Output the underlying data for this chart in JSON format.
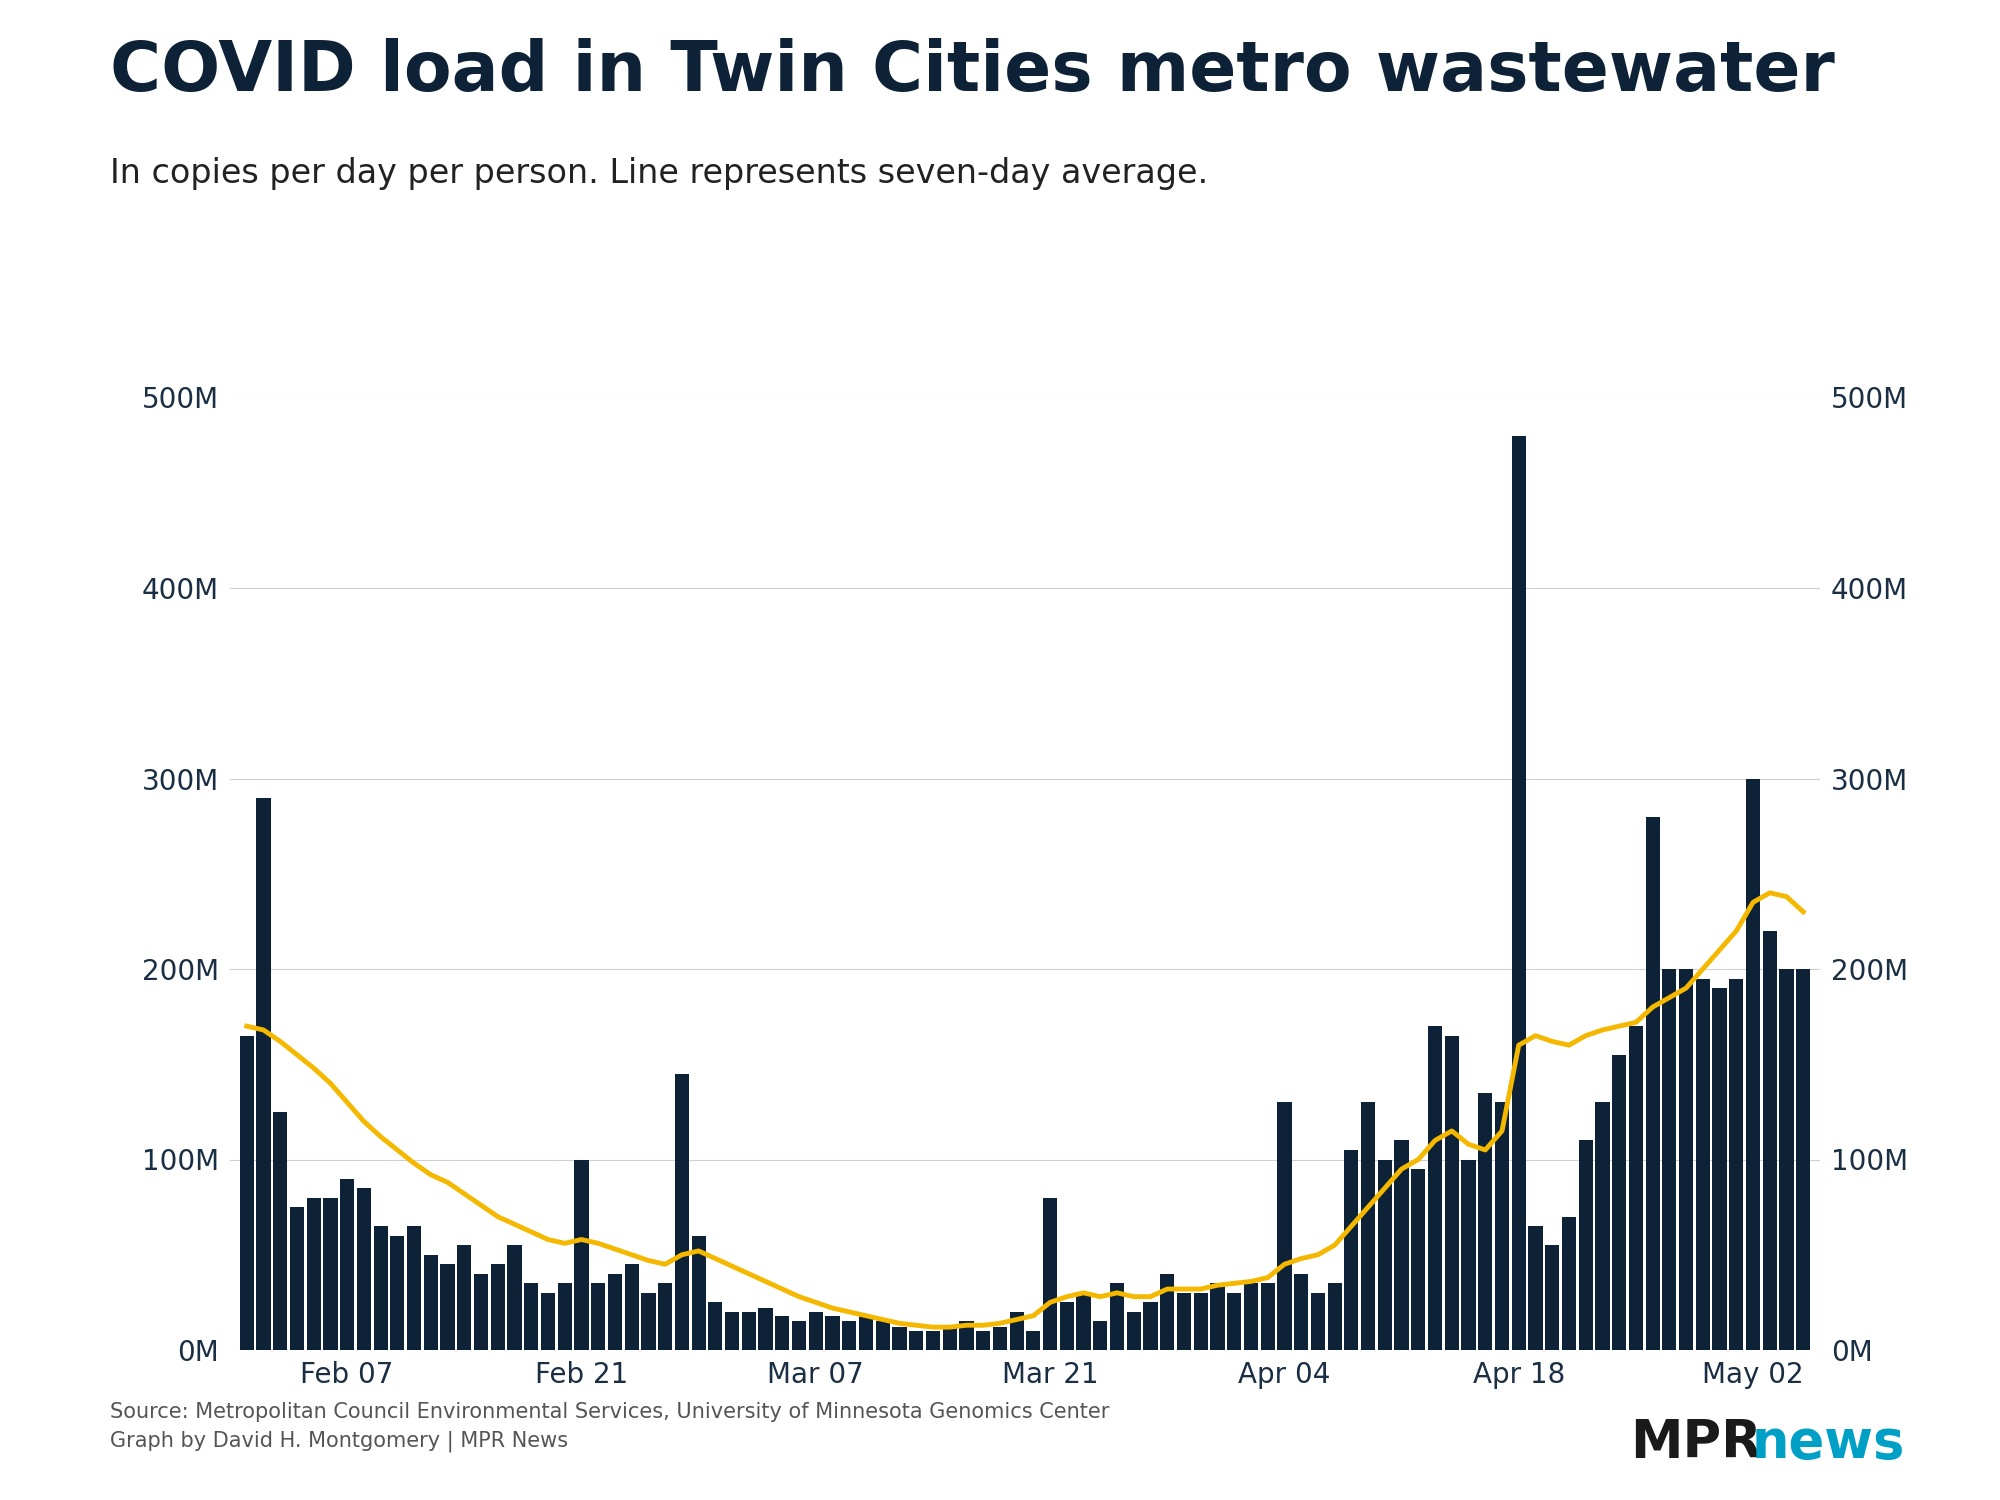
{
  "title": "COVID load in Twin Cities metro wastewater",
  "subtitle": "In copies per day per person. Line represents seven-day average.",
  "source_line1": "Source: Metropolitan Council Environmental Services, University of Minnesota Genomics Center",
  "source_line2": "Graph by David H. Montgomery | MPR News",
  "bar_color": "#0d2137",
  "line_color": "#f5b800",
  "background_color": "#ffffff",
  "ylim": [
    0,
    500000000
  ],
  "yticks": [
    0,
    100000000,
    200000000,
    300000000,
    400000000,
    500000000
  ],
  "title_color": "#0d2137",
  "axis_label_color": "#1a2e44",
  "tick_label_color": "#1a2e44",
  "bar_values": [
    165000000,
    290000000,
    125000000,
    75000000,
    80000000,
    80000000,
    90000000,
    85000000,
    65000000,
    60000000,
    65000000,
    50000000,
    45000000,
    55000000,
    40000000,
    45000000,
    55000000,
    35000000,
    30000000,
    35000000,
    100000000,
    35000000,
    40000000,
    45000000,
    30000000,
    35000000,
    145000000,
    60000000,
    25000000,
    20000000,
    20000000,
    22000000,
    18000000,
    15000000,
    20000000,
    18000000,
    15000000,
    18000000,
    15000000,
    12000000,
    10000000,
    10000000,
    12000000,
    15000000,
    10000000,
    12000000,
    20000000,
    10000000,
    80000000,
    25000000,
    30000000,
    15000000,
    35000000,
    20000000,
    25000000,
    40000000,
    30000000,
    30000000,
    35000000,
    30000000,
    35000000,
    35000000,
    130000000,
    40000000,
    30000000,
    35000000,
    105000000,
    130000000,
    100000000,
    110000000,
    95000000,
    170000000,
    165000000,
    100000000,
    135000000,
    130000000,
    480000000,
    65000000,
    55000000,
    70000000,
    110000000,
    130000000,
    155000000,
    170000000,
    280000000,
    200000000,
    200000000,
    195000000,
    190000000,
    195000000,
    300000000,
    220000000,
    200000000,
    200000000
  ],
  "avg_values": [
    170000000,
    168000000,
    162000000,
    155000000,
    148000000,
    140000000,
    130000000,
    120000000,
    112000000,
    105000000,
    98000000,
    92000000,
    88000000,
    82000000,
    76000000,
    70000000,
    66000000,
    62000000,
    58000000,
    56000000,
    58000000,
    56000000,
    53000000,
    50000000,
    47000000,
    45000000,
    50000000,
    52000000,
    48000000,
    44000000,
    40000000,
    36000000,
    32000000,
    28000000,
    25000000,
    22000000,
    20000000,
    18000000,
    16000000,
    14000000,
    13000000,
    12000000,
    12000000,
    13000000,
    13000000,
    14000000,
    16000000,
    18000000,
    25000000,
    28000000,
    30000000,
    28000000,
    30000000,
    28000000,
    28000000,
    32000000,
    32000000,
    32000000,
    34000000,
    35000000,
    36000000,
    38000000,
    45000000,
    48000000,
    50000000,
    55000000,
    65000000,
    75000000,
    85000000,
    95000000,
    100000000,
    110000000,
    115000000,
    108000000,
    105000000,
    115000000,
    160000000,
    165000000,
    162000000,
    160000000,
    165000000,
    168000000,
    170000000,
    172000000,
    180000000,
    185000000,
    190000000,
    200000000,
    210000000,
    220000000,
    235000000,
    240000000,
    238000000,
    230000000
  ],
  "xtick_positions": [
    6,
    20,
    34,
    48,
    62,
    76,
    90
  ],
  "xtick_labels": [
    "Feb 07",
    "Feb 21",
    "Mar 07",
    "Mar 21",
    "Apr 04",
    "Apr 18",
    "May 02"
  ]
}
